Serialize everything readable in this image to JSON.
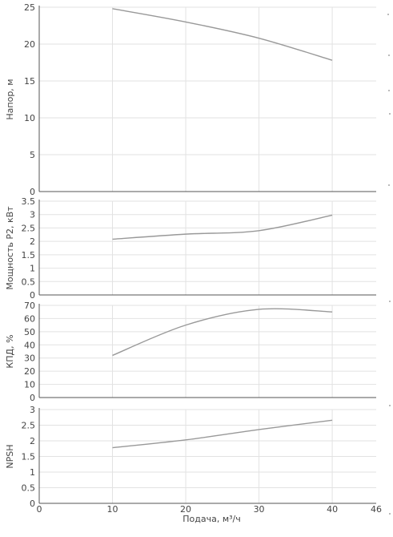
{
  "chart_data": [
    {
      "type": "line",
      "ylabel": "Напор, м",
      "ylim": [
        0,
        25
      ],
      "yticks": [
        "0",
        "5",
        "10",
        "15",
        "20",
        "25"
      ],
      "grid": true,
      "series": [
        {
          "x": [
            10,
            20,
            30,
            40
          ],
          "y": [
            24.8,
            23.0,
            20.8,
            17.8
          ]
        }
      ]
    },
    {
      "type": "line",
      "ylabel": "Мощность P2, кВт",
      "ylim": [
        0,
        3.5
      ],
      "yticks": [
        "0",
        "0.5",
        "1",
        "1.5",
        "2",
        "2.5",
        "3",
        "3.5"
      ],
      "grid": true,
      "series": [
        {
          "x": [
            10,
            20,
            30,
            40
          ],
          "y": [
            2.08,
            2.27,
            2.4,
            2.98
          ]
        }
      ]
    },
    {
      "type": "line",
      "ylabel": "КПД, %",
      "ylim": [
        0,
        70
      ],
      "yticks": [
        "0",
        "10",
        "20",
        "30",
        "40",
        "50",
        "60",
        "70"
      ],
      "grid": true,
      "series": [
        {
          "x": [
            10,
            20,
            30,
            40
          ],
          "y": [
            32,
            55,
            67,
            65
          ]
        }
      ]
    },
    {
      "type": "line",
      "ylabel": "NPSH",
      "ylim": [
        0,
        3
      ],
      "yticks": [
        "0",
        "0.5",
        "1",
        "1.5",
        "2",
        "2.5",
        "3"
      ],
      "grid": true,
      "series": [
        {
          "x": [
            10,
            20,
            30,
            40
          ],
          "y": [
            1.78,
            2.03,
            2.36,
            2.66
          ]
        }
      ]
    }
  ],
  "x_axis": {
    "label": "Подача, м³/ч",
    "xlim": [
      0,
      46
    ],
    "ticks": [
      "0",
      "10",
      "20",
      "30",
      "40",
      "46"
    ]
  }
}
